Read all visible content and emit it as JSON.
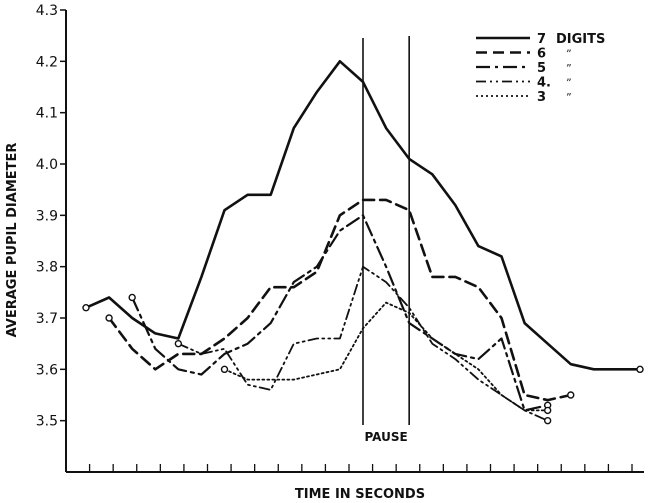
{
  "chart_data": {
    "type": "line",
    "xlabel": "TIME IN SECONDS",
    "ylabel": "AVERAGE PUPIL DIAMETER",
    "xlim": [
      0,
      24
    ],
    "ylim": [
      3.4,
      4.3
    ],
    "yticks": [
      3.5,
      3.6,
      3.7,
      3.8,
      3.9,
      4.0,
      4.1,
      4.2,
      4.3
    ],
    "ytick_labels": [
      "3.5",
      "3.6",
      "3.7",
      "3.8",
      "3.9",
      "4.0",
      "4.1",
      "4.2",
      "4.3"
    ],
    "xtick_count": 24,
    "grid": false,
    "legend_position": "top-right",
    "annotations": {
      "pause_label": "PAUSE",
      "pause_start": 12,
      "pause_end": 14
    },
    "series": [
      {
        "name": "7 DIGITS",
        "legend_label": "7",
        "legend_suffix": "DIGITS",
        "dash": "solid",
        "x": [
          0,
          1,
          2,
          3,
          4,
          5,
          6,
          7,
          8,
          9,
          10,
          11,
          12,
          13,
          14,
          15,
          16,
          17,
          18,
          19,
          20,
          21,
          22,
          23,
          24
        ],
        "y": [
          3.72,
          3.74,
          3.7,
          3.67,
          3.66,
          3.78,
          3.91,
          3.94,
          3.94,
          4.07,
          4.14,
          4.2,
          4.16,
          4.07,
          4.01,
          3.98,
          3.92,
          3.84,
          3.82,
          3.69,
          3.65,
          3.61,
          3.6,
          3.6,
          3.6
        ]
      },
      {
        "name": "6",
        "legend_label": "6",
        "dash": "dashed",
        "x": [
          1,
          2,
          3,
          4,
          5,
          6,
          7,
          8,
          9,
          10,
          11,
          12,
          13,
          14,
          15,
          16,
          17,
          18,
          19,
          20,
          21
        ],
        "y": [
          3.7,
          3.64,
          3.6,
          3.63,
          3.63,
          3.66,
          3.7,
          3.76,
          3.76,
          3.79,
          3.9,
          3.93,
          3.93,
          3.91,
          3.78,
          3.78,
          3.76,
          3.7,
          3.55,
          3.54,
          3.55
        ]
      },
      {
        "name": "5",
        "legend_label": "5",
        "dash": "dashdot",
        "x": [
          2,
          3,
          4,
          5,
          6,
          7,
          8,
          9,
          10,
          11,
          12,
          13,
          14,
          15,
          16,
          17,
          18,
          19,
          20
        ],
        "y": [
          3.74,
          3.64,
          3.6,
          3.59,
          3.63,
          3.65,
          3.69,
          3.77,
          3.8,
          3.87,
          3.9,
          3.8,
          3.69,
          3.66,
          3.63,
          3.62,
          3.66,
          3.52,
          3.53
        ]
      },
      {
        "name": "4",
        "legend_label": "4.",
        "dash": "dashdotdot",
        "x": [
          4,
          5,
          6,
          7,
          8,
          9,
          10,
          11,
          12,
          13,
          14,
          15,
          16,
          17,
          18,
          19,
          20
        ],
        "y": [
          3.65,
          3.63,
          3.64,
          3.57,
          3.56,
          3.65,
          3.66,
          3.66,
          3.8,
          3.77,
          3.72,
          3.65,
          3.62,
          3.58,
          3.55,
          3.52,
          3.5
        ]
      },
      {
        "name": "3",
        "legend_label": "3",
        "dash": "dotted",
        "x": [
          6,
          7,
          8,
          9,
          10,
          11,
          12,
          13,
          14,
          15,
          16,
          17,
          18,
          19,
          20
        ],
        "y": [
          3.6,
          3.58,
          3.58,
          3.58,
          3.59,
          3.6,
          3.68,
          3.73,
          3.71,
          3.66,
          3.63,
          3.6,
          3.55,
          3.52,
          3.52
        ]
      }
    ]
  }
}
